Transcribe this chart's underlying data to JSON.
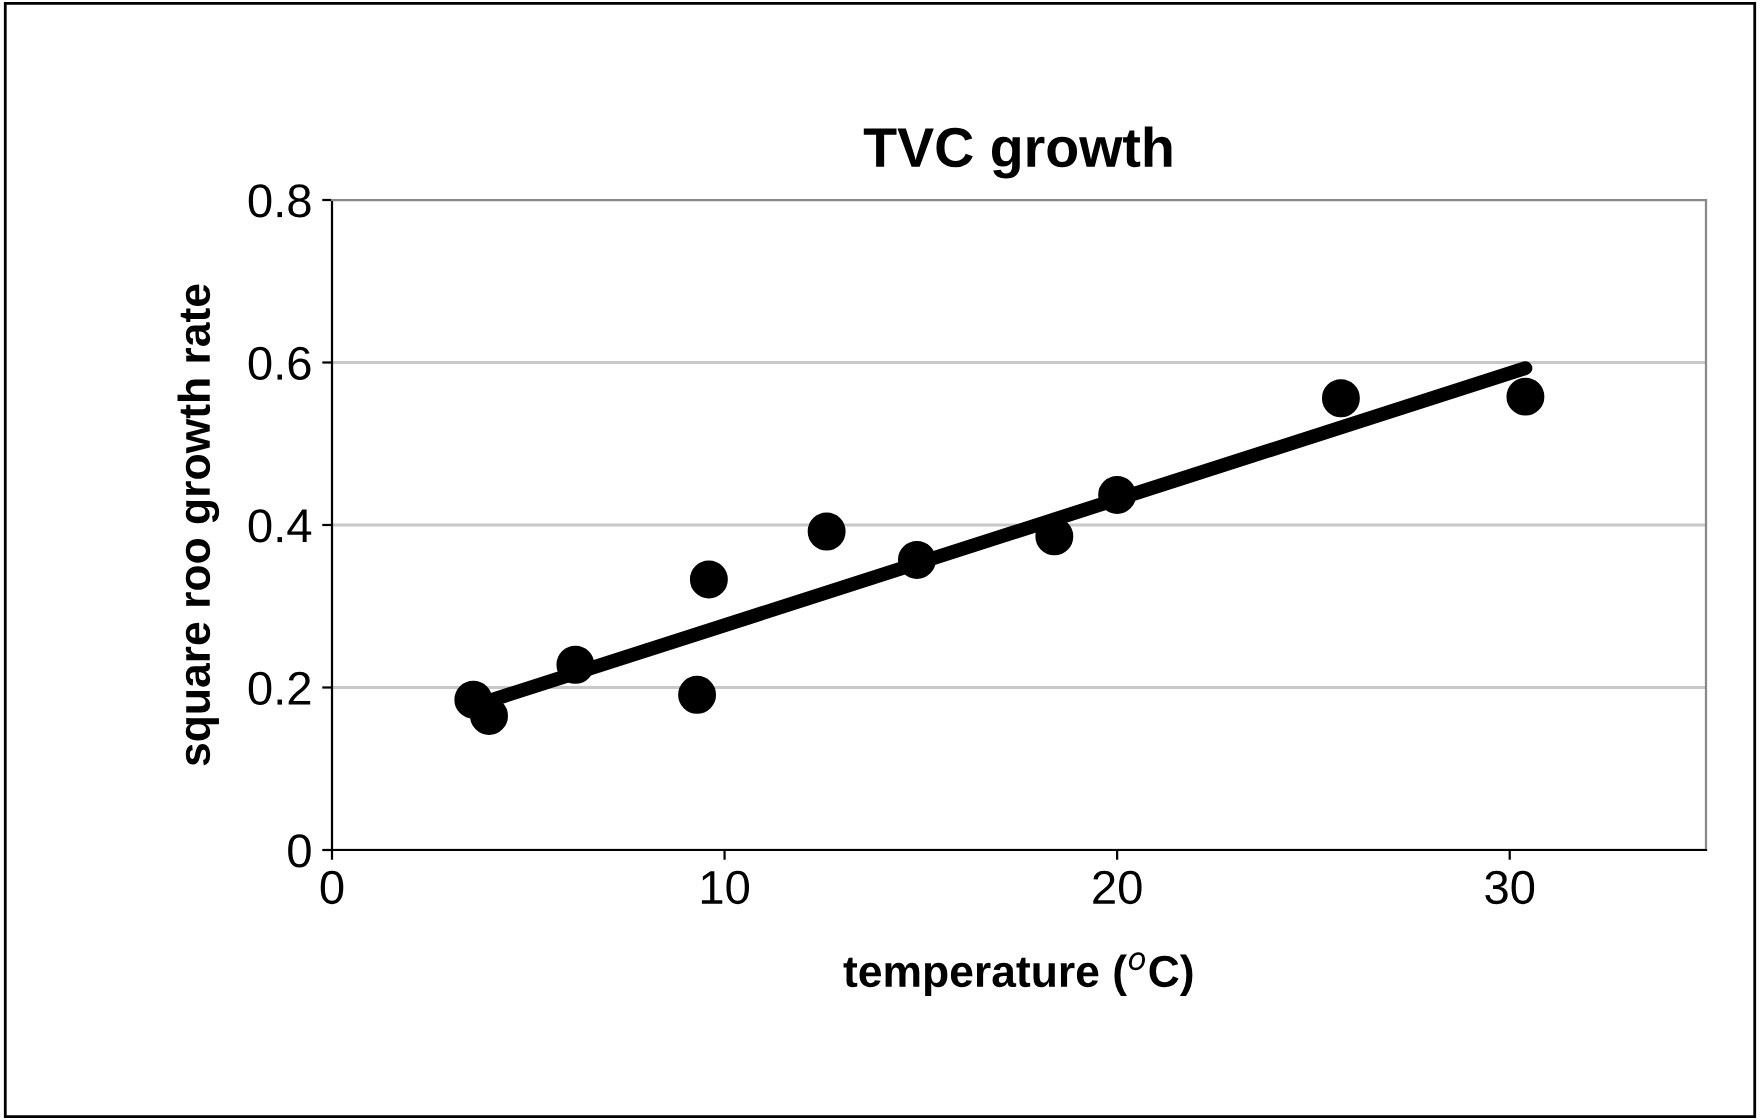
{
  "chart_data": {
    "type": "scatter",
    "title": "TVC growth",
    "xlabel": "temperature ($^{o}$C)",
    "ylabel": "square roo growth rate",
    "series": [
      {
        "color": "#000000",
        "marker": "circle",
        "x": [
          3.6,
          4.0,
          6.2,
          9.3,
          9.6,
          12.6,
          14.9,
          18.4,
          20.0,
          25.7,
          30.4
        ],
        "values": [
          0.185,
          0.165,
          0.228,
          0.191,
          0.333,
          0.392,
          0.357,
          0.386,
          0.437,
          0.556,
          0.558
        ]
      },
      {
        "type": "line",
        "color": "#000000",
        "marker": "none",
        "line_style": "solid",
        "x": [
          3.9,
          30.4
        ],
        "values": [
          0.182,
          0.593
        ]
      }
    ],
    "xlim": [
      0,
      35
    ],
    "xticks": [
      0,
      10,
      20,
      30
    ],
    "ylim": [
      0,
      0.8
    ],
    "yticks": [
      0,
      0.2,
      0.4,
      0.6,
      0.8
    ],
    "grid": "y",
    "legend": false
  }
}
